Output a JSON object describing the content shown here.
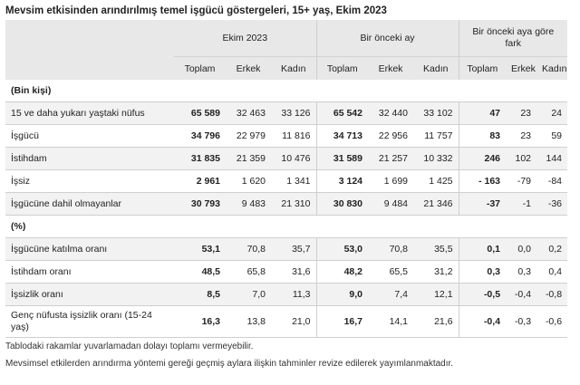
{
  "title": "Mevsim etkisinden arındırılmış temel işgücü göstergeleri, 15+ yaş, Ekim 2023",
  "groups": [
    "Ekim 2023",
    "Bir önceki ay",
    "Bir önceki aya göre fark"
  ],
  "subheaders": [
    "Toplam",
    "Erkek",
    "Kadın"
  ],
  "sections": {
    "thousand": "(Bin kişi)",
    "percent": "(%)"
  },
  "rows_thousand": [
    {
      "label": "15 ve daha yukarı yaştaki nüfus",
      "v": [
        "65 589",
        "32 463",
        "33 126",
        "65 542",
        "32 440",
        "33 102",
        "47",
        "23",
        "24"
      ]
    },
    {
      "label": "İşgücü",
      "v": [
        "34 796",
        "22 979",
        "11 816",
        "34 713",
        "22 956",
        "11 757",
        "83",
        "23",
        "59"
      ]
    },
    {
      "label": "İstihdam",
      "v": [
        "31 835",
        "21 359",
        "10 476",
        "31 589",
        "21 257",
        "10 332",
        "246",
        "102",
        "144"
      ]
    },
    {
      "label": "İşsiz",
      "v": [
        "2 961",
        "1 620",
        "1 341",
        "3 124",
        "1 699",
        "1 425",
        "- 163",
        "-79",
        "-84"
      ]
    },
    {
      "label": "İşgücüne dahil olmayanlar",
      "v": [
        "30 793",
        "9 483",
        "21 310",
        "30 830",
        "9 484",
        "21 346",
        "-37",
        "-1",
        "-36"
      ]
    }
  ],
  "rows_percent": [
    {
      "label": "İşgücüne katılma oranı",
      "v": [
        "53,1",
        "70,8",
        "35,7",
        "53,0",
        "70,8",
        "35,5",
        "0,1",
        "0,0",
        "0,2"
      ]
    },
    {
      "label": "İstihdam oranı",
      "v": [
        "48,5",
        "65,8",
        "31,6",
        "48,2",
        "65,5",
        "31,2",
        "0,3",
        "0,3",
        "0,4"
      ]
    },
    {
      "label": "İşsizlik oranı",
      "v": [
        "8,5",
        "7,0",
        "11,3",
        "9,0",
        "7,4",
        "12,1",
        "-0,5",
        "-0,4",
        "-0,8"
      ]
    },
    {
      "label": "Genç nüfusta işsizlik oranı (15-24 yaş)",
      "v": [
        "16,3",
        "13,8",
        "21,0",
        "16,7",
        "14,1",
        "21,6",
        "-0,4",
        "-0,3",
        "-0,6"
      ]
    }
  ],
  "notes": [
    "Tablodaki rakamlar yuvarlamadan dolayı toplamı vermeyebilir.",
    "Mevsimsel etkilerden arındırma yöntemi gereği geçmiş aylara ilişkin tahminler revize edilerek yayımlanmaktadır."
  ]
}
